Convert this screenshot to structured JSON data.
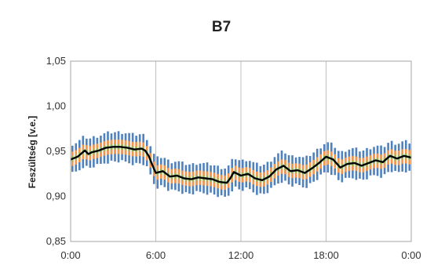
{
  "chart_data": {
    "type": "line",
    "title": "B7",
    "xlabel": "",
    "ylabel": "Feszültség [v.e.]",
    "x_range_hours": [
      0,
      24
    ],
    "x_ticks": [
      "0:00",
      "6:00",
      "12:00",
      "18:00",
      "0:00"
    ],
    "y_range": [
      0.85,
      1.05
    ],
    "y_ticks": [
      "0,85",
      "0,90",
      "0,95",
      "1,00",
      "1,05"
    ],
    "grid": "vertical",
    "legend": "none",
    "colors": {
      "median_line": "#000000",
      "outer_band": "#4f81bd",
      "inner_band": "#f79646",
      "core_band": "#9bbb59",
      "grid": "#c0c0c0",
      "frame": "#a6a6a6"
    },
    "bands": {
      "outer_half_width": 0.0145,
      "inner_half_width": 0.008,
      "core_half_width": 0.003
    },
    "series": [
      {
        "role": "median",
        "x": [
          0,
          0.5,
          1,
          1.25,
          1.5,
          2,
          2.5,
          3,
          3.5,
          4,
          4.5,
          5,
          5.25,
          5.5,
          5.75,
          6,
          6.5,
          7,
          7.5,
          8,
          8.5,
          9,
          9.5,
          10,
          10.5,
          11,
          11.25,
          11.5,
          12,
          12.5,
          13,
          13.5,
          14,
          14.5,
          15,
          15.5,
          16,
          16.5,
          17,
          17.5,
          18,
          18.5,
          19,
          19.5,
          20,
          20.5,
          21,
          21.5,
          22,
          22.5,
          23,
          23.5,
          24
        ],
        "y": [
          0.941,
          0.944,
          0.951,
          0.947,
          0.949,
          0.951,
          0.954,
          0.955,
          0.955,
          0.954,
          0.952,
          0.953,
          0.951,
          0.945,
          0.935,
          0.926,
          0.928,
          0.922,
          0.923,
          0.92,
          0.919,
          0.921,
          0.92,
          0.919,
          0.916,
          0.915,
          0.92,
          0.927,
          0.923,
          0.925,
          0.92,
          0.918,
          0.922,
          0.93,
          0.934,
          0.928,
          0.929,
          0.926,
          0.931,
          0.937,
          0.944,
          0.941,
          0.932,
          0.936,
          0.937,
          0.934,
          0.937,
          0.94,
          0.938,
          0.945,
          0.942,
          0.945,
          0.943
        ]
      }
    ]
  }
}
